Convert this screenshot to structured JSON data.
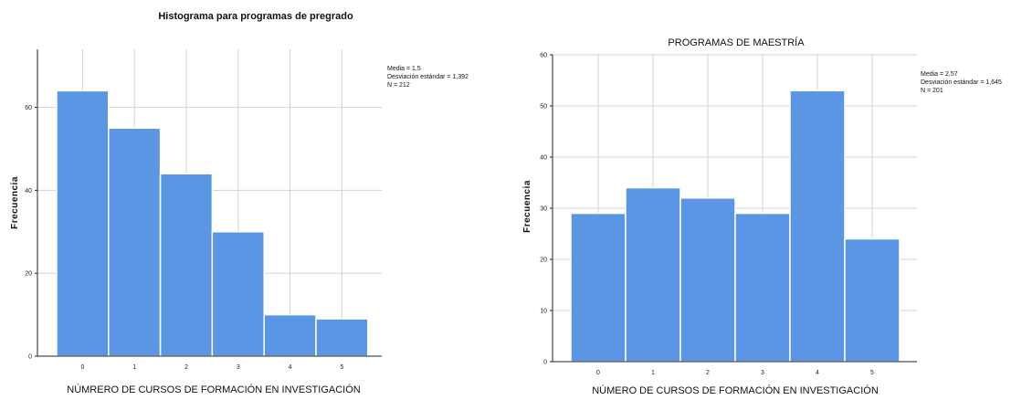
{
  "chart_data": [
    {
      "type": "bar",
      "title": "Histograma para programas de pregrado",
      "xlabel": "NÚMRERO DE CURSOS DE FORMACIÓN EN INVESTIGACIÓN",
      "ylabel": "Frecuencia",
      "categories": [
        "0",
        "1",
        "2",
        "3",
        "4",
        "5"
      ],
      "values": [
        64,
        55,
        44,
        30,
        10,
        9
      ],
      "ylim": [
        0,
        74
      ],
      "yticks": [
        0,
        20,
        40,
        60
      ],
      "yticks_labels": [
        "0",
        "20",
        "40",
        "60"
      ],
      "grid": true,
      "bar_color": "#5b96e4",
      "stats": [
        "Media = 1,5",
        "Desviación estándar = 1,392",
        "N = 212"
      ]
    },
    {
      "type": "bar",
      "title": "PROGRAMAS DE MAESTRÍA",
      "xlabel": "NÚMERO DE CURSOS DE FORMACIÓN EN INVESTIGACIÓN",
      "ylabel": "Frecuencia",
      "categories": [
        "0",
        "1",
        "2",
        "3",
        "4",
        "5"
      ],
      "values": [
        29,
        34,
        32,
        29,
        53,
        24
      ],
      "ylim": [
        0,
        60
      ],
      "yticks": [
        0,
        10,
        20,
        30,
        40,
        50,
        60
      ],
      "yticks_labels": [
        "0",
        "10",
        "20",
        "30",
        "40",
        "50",
        "60"
      ],
      "grid": true,
      "bar_color": "#5b96e4",
      "stats": [
        "Media = 2,57",
        "Desviación estándar = 1,645",
        "N = 201"
      ]
    }
  ]
}
